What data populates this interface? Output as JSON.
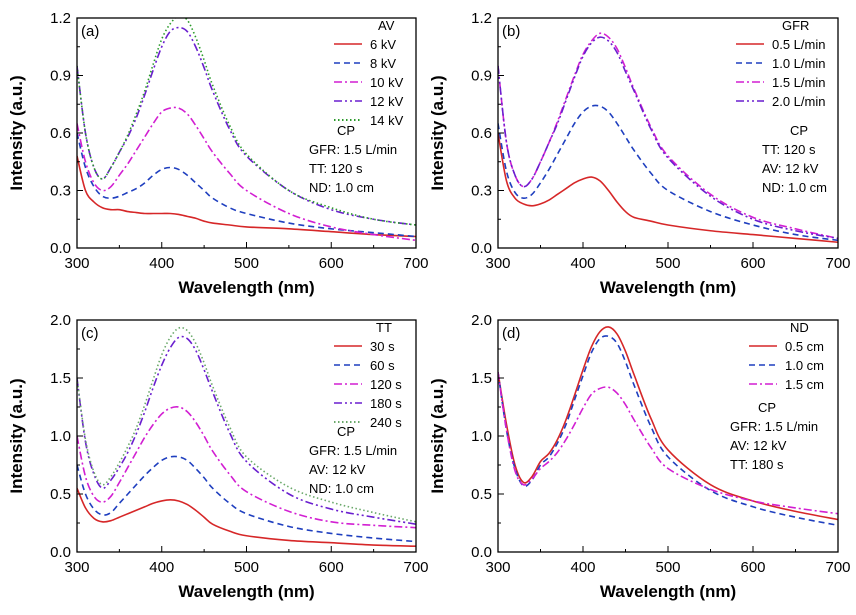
{
  "chart_data": [
    {
      "type": "line",
      "panel_label": "(a)",
      "xlabel": "Wavelength (nm)",
      "ylabel": "Intensity (a.u.)",
      "xlim": [
        300,
        700
      ],
      "ylim": [
        0,
        1.2
      ],
      "xticks": [
        300,
        400,
        500,
        600,
        700
      ],
      "yticks": [
        "0.0",
        "0.3",
        "0.6",
        "0.9",
        "1.2"
      ],
      "legend_title": "AV",
      "conditions_title": "CP",
      "conditions": [
        "GFR: 1.5 L/min",
        "TT: 120 s",
        "ND: 1.0 cm"
      ],
      "series": [
        {
          "name": "6 kV",
          "color": "#d62728",
          "style": "solid",
          "x": [
            300,
            310,
            320,
            330,
            340,
            350,
            360,
            370,
            380,
            390,
            400,
            410,
            420,
            430,
            440,
            450,
            460,
            480,
            500,
            550,
            600,
            650,
            700
          ],
          "y": [
            0.48,
            0.3,
            0.24,
            0.21,
            0.2,
            0.2,
            0.19,
            0.185,
            0.18,
            0.18,
            0.18,
            0.18,
            0.175,
            0.165,
            0.155,
            0.14,
            0.13,
            0.12,
            0.11,
            0.1,
            0.085,
            0.07,
            0.06
          ]
        },
        {
          "name": "8 kV",
          "color": "#1f3fbf",
          "style": "dash",
          "x": [
            300,
            310,
            320,
            330,
            340,
            350,
            360,
            370,
            380,
            390,
            400,
            410,
            420,
            430,
            440,
            450,
            460,
            480,
            500,
            550,
            600,
            650,
            700
          ],
          "y": [
            0.6,
            0.42,
            0.32,
            0.27,
            0.26,
            0.27,
            0.29,
            0.31,
            0.34,
            0.38,
            0.41,
            0.42,
            0.41,
            0.38,
            0.34,
            0.3,
            0.26,
            0.21,
            0.18,
            0.13,
            0.1,
            0.08,
            0.06
          ]
        },
        {
          "name": "10 kV",
          "color": "#d21fd2",
          "style": "dashdot",
          "x": [
            300,
            310,
            320,
            330,
            340,
            350,
            360,
            370,
            380,
            390,
            400,
            410,
            420,
            430,
            440,
            450,
            460,
            480,
            500,
            550,
            600,
            650,
            700
          ],
          "y": [
            0.65,
            0.45,
            0.34,
            0.3,
            0.32,
            0.38,
            0.44,
            0.51,
            0.58,
            0.65,
            0.71,
            0.73,
            0.73,
            0.7,
            0.64,
            0.57,
            0.5,
            0.39,
            0.3,
            0.18,
            0.11,
            0.07,
            0.04
          ]
        },
        {
          "name": "12 kV",
          "color": "#6a1fcf",
          "style": "dashdotdot",
          "x": [
            300,
            310,
            320,
            330,
            340,
            350,
            360,
            370,
            380,
            390,
            400,
            410,
            420,
            430,
            440,
            450,
            460,
            480,
            500,
            550,
            600,
            650,
            700
          ],
          "y": [
            0.95,
            0.6,
            0.42,
            0.36,
            0.42,
            0.5,
            0.58,
            0.68,
            0.8,
            0.93,
            1.05,
            1.13,
            1.15,
            1.13,
            1.05,
            0.94,
            0.82,
            0.62,
            0.48,
            0.3,
            0.2,
            0.15,
            0.12
          ]
        },
        {
          "name": "14 kV",
          "color": "#2a9a2a",
          "style": "dot",
          "x": [
            300,
            310,
            320,
            330,
            340,
            350,
            360,
            370,
            380,
            390,
            400,
            410,
            420,
            430,
            440,
            450,
            460,
            480,
            500,
            550,
            600,
            650,
            700
          ],
          "y": [
            0.95,
            0.6,
            0.42,
            0.36,
            0.42,
            0.5,
            0.59,
            0.7,
            0.82,
            0.96,
            1.09,
            1.17,
            1.21,
            1.19,
            1.1,
            0.98,
            0.85,
            0.64,
            0.49,
            0.3,
            0.21,
            0.15,
            0.12
          ]
        }
      ]
    },
    {
      "type": "line",
      "panel_label": "(b)",
      "xlabel": "Wavelength (nm)",
      "ylabel": "Intensity (a.u.)",
      "xlim": [
        300,
        700
      ],
      "ylim": [
        0,
        1.2
      ],
      "xticks": [
        300,
        400,
        500,
        600,
        700
      ],
      "yticks": [
        "0.0",
        "0.3",
        "0.6",
        "0.9",
        "1.2"
      ],
      "legend_title": "GFR",
      "conditions_title": "CP",
      "conditions": [
        "TT: 120 s",
        "AV: 12 kV",
        "ND: 1.0 cm"
      ],
      "series": [
        {
          "name": "0.5 L/min",
          "color": "#d62728",
          "style": "solid",
          "x": [
            300,
            310,
            320,
            330,
            340,
            350,
            360,
            370,
            380,
            390,
            400,
            410,
            420,
            430,
            440,
            450,
            460,
            480,
            500,
            550,
            600,
            650,
            700
          ],
          "y": [
            0.6,
            0.35,
            0.26,
            0.23,
            0.22,
            0.23,
            0.25,
            0.28,
            0.31,
            0.34,
            0.36,
            0.37,
            0.35,
            0.3,
            0.24,
            0.19,
            0.16,
            0.14,
            0.12,
            0.09,
            0.07,
            0.05,
            0.03
          ]
        },
        {
          "name": "1.0 L/min",
          "color": "#1f3fbf",
          "style": "dash",
          "x": [
            300,
            310,
            320,
            330,
            340,
            350,
            360,
            370,
            380,
            390,
            400,
            410,
            420,
            430,
            440,
            450,
            460,
            480,
            500,
            550,
            600,
            650,
            700
          ],
          "y": [
            0.65,
            0.4,
            0.29,
            0.26,
            0.28,
            0.34,
            0.41,
            0.49,
            0.57,
            0.65,
            0.71,
            0.74,
            0.74,
            0.71,
            0.65,
            0.58,
            0.51,
            0.39,
            0.3,
            0.19,
            0.12,
            0.07,
            0.04
          ]
        },
        {
          "name": "1.5 L/min",
          "color": "#d21fd2",
          "style": "dashdot",
          "x": [
            300,
            310,
            320,
            330,
            340,
            350,
            360,
            370,
            380,
            390,
            400,
            410,
            420,
            430,
            440,
            450,
            460,
            480,
            500,
            550,
            600,
            650,
            700
          ],
          "y": [
            0.95,
            0.55,
            0.38,
            0.32,
            0.36,
            0.45,
            0.55,
            0.66,
            0.78,
            0.9,
            1.01,
            1.08,
            1.12,
            1.1,
            1.04,
            0.94,
            0.83,
            0.63,
            0.48,
            0.28,
            0.16,
            0.1,
            0.05
          ]
        },
        {
          "name": "2.0 L/min",
          "color": "#6a1fcf",
          "style": "dashdotdot",
          "x": [
            300,
            310,
            320,
            330,
            340,
            350,
            360,
            370,
            380,
            390,
            400,
            410,
            420,
            430,
            440,
            450,
            460,
            480,
            500,
            550,
            600,
            650,
            700
          ],
          "y": [
            0.95,
            0.55,
            0.38,
            0.32,
            0.36,
            0.45,
            0.55,
            0.65,
            0.77,
            0.89,
            1.0,
            1.07,
            1.1,
            1.08,
            1.02,
            0.92,
            0.82,
            0.62,
            0.47,
            0.27,
            0.15,
            0.09,
            0.05
          ]
        }
      ]
    },
    {
      "type": "line",
      "panel_label": "(c)",
      "xlabel": "Wavelength (nm)",
      "ylabel": "Intensity (a.u.)",
      "xlim": [
        300,
        700
      ],
      "ylim": [
        0,
        2.0
      ],
      "xticks": [
        300,
        400,
        500,
        600,
        700
      ],
      "yticks": [
        "0.0",
        "0.5",
        "1.0",
        "1.5",
        "2.0"
      ],
      "legend_title": "TT",
      "conditions_title": "CP",
      "conditions": [
        "GFR: 1.5 L/min",
        "AV: 12 kV",
        "ND: 1.0 cm"
      ],
      "series": [
        {
          "name": "30 s",
          "color": "#d62728",
          "style": "solid",
          "x": [
            300,
            310,
            320,
            330,
            340,
            350,
            360,
            370,
            380,
            390,
            400,
            410,
            420,
            430,
            440,
            450,
            460,
            480,
            500,
            550,
            600,
            650,
            700
          ],
          "y": [
            0.55,
            0.38,
            0.29,
            0.26,
            0.27,
            0.3,
            0.33,
            0.36,
            0.39,
            0.42,
            0.44,
            0.45,
            0.44,
            0.41,
            0.36,
            0.3,
            0.24,
            0.18,
            0.14,
            0.1,
            0.08,
            0.06,
            0.05
          ]
        },
        {
          "name": "60 s",
          "color": "#1f3fbf",
          "style": "dash",
          "x": [
            300,
            310,
            320,
            330,
            340,
            350,
            360,
            370,
            380,
            390,
            400,
            410,
            420,
            430,
            440,
            450,
            460,
            480,
            500,
            550,
            600,
            650,
            700
          ],
          "y": [
            0.75,
            0.5,
            0.37,
            0.32,
            0.34,
            0.42,
            0.5,
            0.58,
            0.66,
            0.73,
            0.79,
            0.82,
            0.82,
            0.79,
            0.72,
            0.64,
            0.55,
            0.42,
            0.33,
            0.22,
            0.16,
            0.12,
            0.09
          ]
        },
        {
          "name": "120 s",
          "color": "#d21fd2",
          "style": "dashdot",
          "x": [
            300,
            310,
            320,
            330,
            340,
            350,
            360,
            370,
            380,
            390,
            400,
            410,
            420,
            430,
            440,
            450,
            460,
            480,
            500,
            550,
            600,
            650,
            700
          ],
          "y": [
            1.0,
            0.65,
            0.48,
            0.43,
            0.48,
            0.6,
            0.73,
            0.86,
            0.99,
            1.1,
            1.19,
            1.24,
            1.25,
            1.21,
            1.12,
            1.0,
            0.87,
            0.67,
            0.52,
            0.35,
            0.26,
            0.23,
            0.21
          ]
        },
        {
          "name": "180 s",
          "color": "#6a1fcf",
          "style": "dashdotdot",
          "x": [
            300,
            310,
            320,
            330,
            340,
            350,
            360,
            370,
            380,
            390,
            400,
            410,
            420,
            430,
            440,
            450,
            460,
            480,
            500,
            550,
            600,
            650,
            700
          ],
          "y": [
            1.5,
            0.95,
            0.67,
            0.55,
            0.62,
            0.73,
            0.86,
            1.02,
            1.21,
            1.42,
            1.61,
            1.76,
            1.85,
            1.84,
            1.74,
            1.57,
            1.38,
            1.03,
            0.78,
            0.5,
            0.37,
            0.3,
            0.24
          ]
        },
        {
          "name": "240 s",
          "color": "#6aa86a",
          "style": "dot",
          "x": [
            300,
            310,
            320,
            330,
            340,
            350,
            360,
            370,
            380,
            390,
            400,
            410,
            420,
            430,
            440,
            450,
            460,
            480,
            500,
            550,
            600,
            650,
            700
          ],
          "y": [
            1.5,
            0.97,
            0.69,
            0.58,
            0.65,
            0.77,
            0.91,
            1.07,
            1.27,
            1.49,
            1.7,
            1.85,
            1.93,
            1.91,
            1.8,
            1.63,
            1.43,
            1.08,
            0.82,
            0.56,
            0.43,
            0.34,
            0.26
          ]
        }
      ]
    },
    {
      "type": "line",
      "panel_label": "(d)",
      "xlabel": "Wavelength (nm)",
      "ylabel": "Intensity (a.u.)",
      "xlim": [
        300,
        700
      ],
      "ylim": [
        0,
        2.0
      ],
      "xticks": [
        300,
        400,
        500,
        600,
        700
      ],
      "yticks": [
        "0.0",
        "0.5",
        "1.0",
        "1.5",
        "2.0"
      ],
      "legend_title": "ND",
      "conditions_title": "CP",
      "conditions": [
        "GFR: 1.5 L/min",
        "AV: 12 kV",
        "TT: 180 s"
      ],
      "series": [
        {
          "name": "0.5 cm",
          "color": "#d62728",
          "style": "solid",
          "x": [
            300,
            310,
            320,
            330,
            340,
            350,
            360,
            370,
            380,
            390,
            400,
            410,
            420,
            430,
            440,
            450,
            460,
            480,
            500,
            550,
            600,
            650,
            700
          ],
          "y": [
            1.55,
            1.1,
            0.75,
            0.6,
            0.65,
            0.78,
            0.85,
            0.97,
            1.14,
            1.35,
            1.57,
            1.77,
            1.9,
            1.94,
            1.88,
            1.73,
            1.53,
            1.15,
            0.88,
            0.58,
            0.44,
            0.35,
            0.28
          ]
        },
        {
          "name": "1.0 cm",
          "color": "#1f3fbf",
          "style": "dash",
          "x": [
            300,
            310,
            320,
            330,
            340,
            350,
            360,
            370,
            380,
            390,
            400,
            410,
            420,
            430,
            440,
            450,
            460,
            480,
            500,
            550,
            600,
            650,
            700
          ],
          "y": [
            1.55,
            1.05,
            0.72,
            0.57,
            0.62,
            0.75,
            0.82,
            0.94,
            1.1,
            1.31,
            1.52,
            1.72,
            1.84,
            1.86,
            1.8,
            1.64,
            1.44,
            1.08,
            0.82,
            0.53,
            0.39,
            0.3,
            0.23
          ]
        },
        {
          "name": "1.5 cm",
          "color": "#d21fd2",
          "style": "dashdot",
          "x": [
            300,
            310,
            320,
            330,
            340,
            350,
            360,
            370,
            380,
            390,
            400,
            410,
            420,
            430,
            440,
            450,
            460,
            480,
            500,
            550,
            600,
            650,
            700
          ],
          "y": [
            1.55,
            1.05,
            0.7,
            0.58,
            0.63,
            0.72,
            0.78,
            0.86,
            0.97,
            1.1,
            1.24,
            1.36,
            1.41,
            1.42,
            1.37,
            1.27,
            1.14,
            0.9,
            0.72,
            0.54,
            0.44,
            0.38,
            0.33
          ]
        }
      ]
    }
  ]
}
